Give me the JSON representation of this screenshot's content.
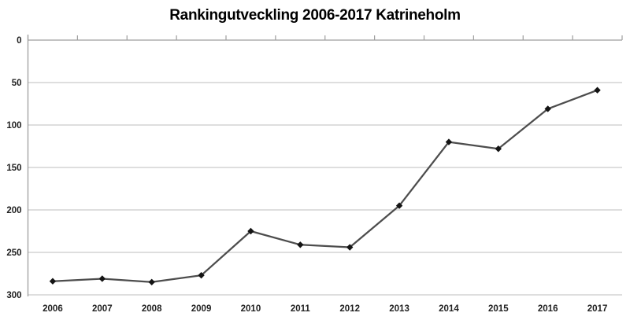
{
  "chart_data": {
    "type": "line",
    "title": "Rankingutveckling 2006-2017 Katrineholm",
    "x": [
      "2006",
      "2007",
      "2008",
      "2009",
      "2010",
      "2011",
      "2012",
      "2013",
      "2014",
      "2015",
      "2016",
      "2017"
    ],
    "values": [
      284,
      281,
      285,
      277,
      225,
      241,
      244,
      195,
      120,
      128,
      81,
      59
    ],
    "series_name": "Ranking",
    "xlabel": "",
    "ylabel": "",
    "ylim": [
      0,
      300
    ],
    "y_axis_reversed": true,
    "y_ticks": [
      0,
      50,
      100,
      150,
      200,
      250,
      300
    ],
    "grid": "horizontal",
    "legend": "none",
    "marker": "diamond",
    "colors": {
      "line": "#4d4d4d",
      "marker": "#141414",
      "gridline": "#c9c9c9",
      "axis": "#9e9e9e",
      "tick_text": "#1f1f1f",
      "title_text": "#000000",
      "background": "#ffffff"
    }
  }
}
